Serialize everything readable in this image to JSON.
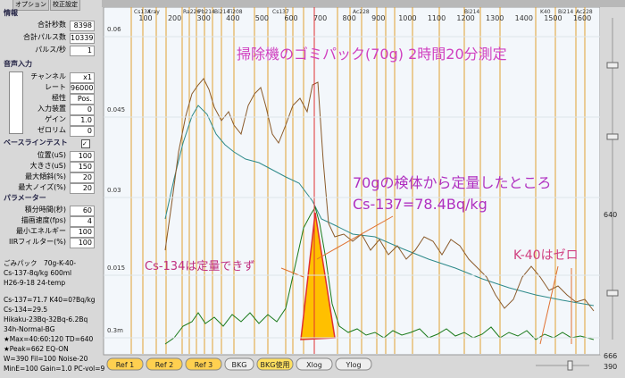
{
  "tabs": [
    "オプション",
    "校正設定"
  ],
  "info": {
    "title": "情報",
    "rows": [
      {
        "label": "合計秒数",
        "value": "8398"
      },
      {
        "label": "合計パルス数",
        "value": "10339"
      },
      {
        "label": "パルス/秒",
        "value": "1"
      }
    ]
  },
  "audio": {
    "title": "音声入力",
    "rows": [
      {
        "label": "チャンネル",
        "value": "x1"
      },
      {
        "label": "レート",
        "value": "96000"
      },
      {
        "label": "極性",
        "value": "Pos."
      },
      {
        "label": "入力装置",
        "value": "0"
      },
      {
        "label": "ゲイン",
        "value": "1.0"
      },
      {
        "label": "ゼロリム",
        "value": "0"
      }
    ]
  },
  "baseline": {
    "title": "ベースラインテスト",
    "rows": [
      {
        "label": "位置(uS)",
        "value": "100"
      },
      {
        "label": "大きさ(uS)",
        "value": "150"
      },
      {
        "label": "最大傾斜(%)",
        "value": "20"
      },
      {
        "label": "最大ノイズ(%)",
        "value": "20"
      }
    ]
  },
  "params": {
    "title": "パラメーター",
    "rows": [
      {
        "label": "積分時間(秒)",
        "value": "60"
      },
      {
        "label": "描画速度(fps)",
        "value": "4"
      },
      {
        "label": "最小エネルギー",
        "value": "100"
      },
      {
        "label": "IIRフィルター(%)",
        "value": "100"
      }
    ]
  },
  "notes": [
    "ごみパック　70g-K-40-",
    "Cs-137-8q/kg  600ml",
    "H26-9-18 24-temp",
    "Cs-137=71.7  K40=0?Bq/kg",
    "Cs-134=29.5",
    "Hikaku-23Bq-32Bq-6.2Bq",
    "34h-Normal-BG",
    "★Max=40:60:120 TD=640",
    "★Peak=662 EQ-ON",
    "W=390 Fil=100 Noise-20",
    "MinE=100 Gain=1.0 PC-vol=9"
  ],
  "chart": {
    "title": "掃除機のゴミパック(70g) 2時間20分測定",
    "annotations": [
      "70gの検体から定量したところ",
      "Cs-137=78.4Bq/kg",
      "Cs-134は定量できず",
      "K-40はゼロ"
    ],
    "yticks": [
      "0.06",
      "0.045",
      "0.03",
      "0.015",
      "0.3m"
    ],
    "xticks": [
      "100",
      "200",
      "300",
      "400",
      "500",
      "600",
      "700",
      "800",
      "900",
      "1000",
      "1100",
      "1200",
      "1300",
      "1400",
      "1500",
      "1600"
    ],
    "peaks": [
      "Cs134",
      "Xray",
      "Ra226",
      "Pb214",
      "Bi214",
      "Ti208",
      "Cs137",
      "Ac228",
      "Bi214",
      "K40",
      "Bi214",
      "Ac228"
    ]
  },
  "right": [
    "640",
    "666",
    "390"
  ],
  "buttons": [
    "Ref 1",
    "Ref 2",
    "Ref 3",
    "BKG",
    "BKG使用",
    "Xlog",
    "Ylog"
  ]
}
